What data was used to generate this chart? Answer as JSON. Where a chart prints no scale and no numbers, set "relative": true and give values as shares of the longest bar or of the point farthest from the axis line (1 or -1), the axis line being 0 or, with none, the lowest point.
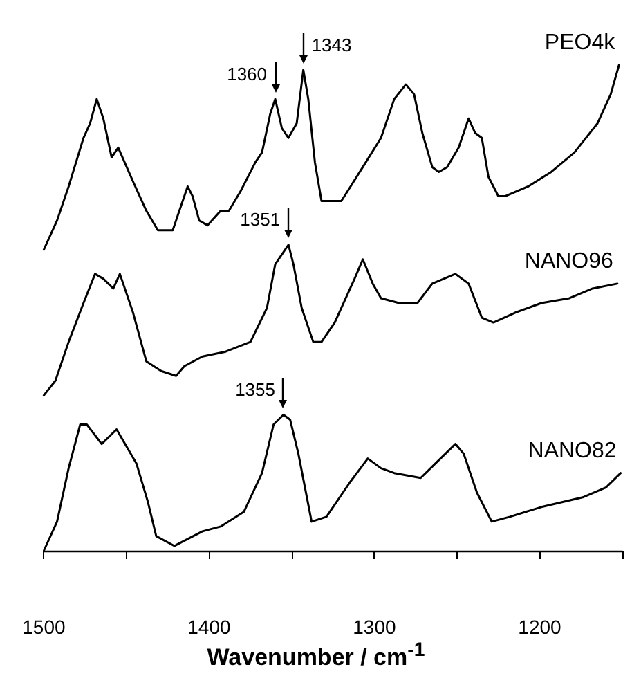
{
  "chart_data": {
    "type": "line",
    "relative": true,
    "xlabel": "Wavenumber / cm$^{-1}$",
    "xlim": [
      1500,
      1150
    ],
    "xticks": [
      1500,
      {
        "value": 1450,
        "label": null
      },
      1400,
      {
        "value": 1350,
        "label": null
      },
      1300,
      {
        "value": 1250,
        "label": null
      },
      1200,
      {
        "value": 1150,
        "label": null
      }
    ],
    "line_style": "solid",
    "marker": "none",
    "series": [
      {
        "name": "PEO4k",
        "color": "#000000",
        "x": [
          1500,
          1492,
          1485,
          1476,
          1472,
          1468,
          1464,
          1459,
          1455,
          1446,
          1438,
          1431,
          1422,
          1418,
          1413,
          1410,
          1406,
          1401,
          1393,
          1388,
          1381,
          1372,
          1368,
          1363,
          1360,
          1356,
          1352,
          1347,
          1343,
          1340,
          1336,
          1332,
          1326,
          1320,
          1307,
          1296,
          1288,
          1281,
          1276,
          1271,
          1265,
          1261,
          1256,
          1249,
          1243,
          1239,
          1235,
          1231,
          1225,
          1221,
          1207,
          1193,
          1179,
          1165,
          1157,
          1152
        ],
        "values": [
          0.62,
          0.68,
          0.75,
          0.85,
          0.88,
          0.93,
          0.89,
          0.81,
          0.83,
          0.76,
          0.7,
          0.66,
          0.66,
          0.7,
          0.75,
          0.73,
          0.68,
          0.67,
          0.7,
          0.7,
          0.74,
          0.8,
          0.82,
          0.9,
          0.93,
          0.87,
          0.85,
          0.88,
          0.99,
          0.93,
          0.8,
          0.72,
          0.72,
          0.72,
          0.79,
          0.85,
          0.93,
          0.96,
          0.94,
          0.86,
          0.79,
          0.78,
          0.79,
          0.83,
          0.89,
          0.86,
          0.85,
          0.77,
          0.73,
          0.73,
          0.75,
          0.78,
          0.82,
          0.88,
          0.94,
          1.0
        ]
      },
      {
        "name": "NANO96",
        "color": "#000000",
        "x": [
          1500,
          1493,
          1485,
          1476,
          1469,
          1464,
          1458,
          1454,
          1446,
          1438,
          1429,
          1420,
          1415,
          1404,
          1390,
          1375,
          1365,
          1360,
          1352,
          1349,
          1344,
          1337,
          1332,
          1324,
          1312,
          1307,
          1301,
          1296,
          1285,
          1274,
          1265,
          1251,
          1243,
          1235,
          1228,
          1215,
          1199,
          1182,
          1168,
          1153
        ],
        "values": [
          0.32,
          0.35,
          0.43,
          0.51,
          0.57,
          0.56,
          0.54,
          0.57,
          0.49,
          0.39,
          0.37,
          0.36,
          0.38,
          0.4,
          0.41,
          0.43,
          0.5,
          0.59,
          0.63,
          0.59,
          0.5,
          0.43,
          0.43,
          0.47,
          0.56,
          0.6,
          0.55,
          0.52,
          0.51,
          0.51,
          0.55,
          0.57,
          0.55,
          0.48,
          0.47,
          0.49,
          0.51,
          0.52,
          0.54,
          0.55
        ]
      },
      {
        "name": "NANO82",
        "color": "#000000",
        "x": [
          1500,
          1492,
          1485,
          1478,
          1474,
          1465,
          1456,
          1444,
          1437,
          1432,
          1421,
          1404,
          1393,
          1379,
          1368,
          1361,
          1355,
          1351,
          1346,
          1338,
          1329,
          1315,
          1304,
          1296,
          1288,
          1272,
          1263,
          1251,
          1246,
          1238,
          1229,
          1218,
          1199,
          1174,
          1160,
          1151
        ],
        "values": [
          0.0,
          0.06,
          0.17,
          0.26,
          0.26,
          0.22,
          0.25,
          0.18,
          0.1,
          0.03,
          0.01,
          0.04,
          0.05,
          0.08,
          0.16,
          0.26,
          0.28,
          0.27,
          0.2,
          0.06,
          0.07,
          0.14,
          0.19,
          0.17,
          0.16,
          0.15,
          0.18,
          0.22,
          0.2,
          0.12,
          0.06,
          0.07,
          0.09,
          0.11,
          0.13,
          0.16
        ]
      }
    ],
    "annotations": [
      {
        "text": "1360",
        "x": 1360,
        "y": 0.93
      },
      {
        "text": "1343",
        "x": 1343,
        "y": 0.99
      },
      {
        "text": "1351",
        "x": 1352,
        "y": 0.63
      },
      {
        "text": "1355",
        "x": 1355,
        "y": 0.28
      }
    ]
  }
}
